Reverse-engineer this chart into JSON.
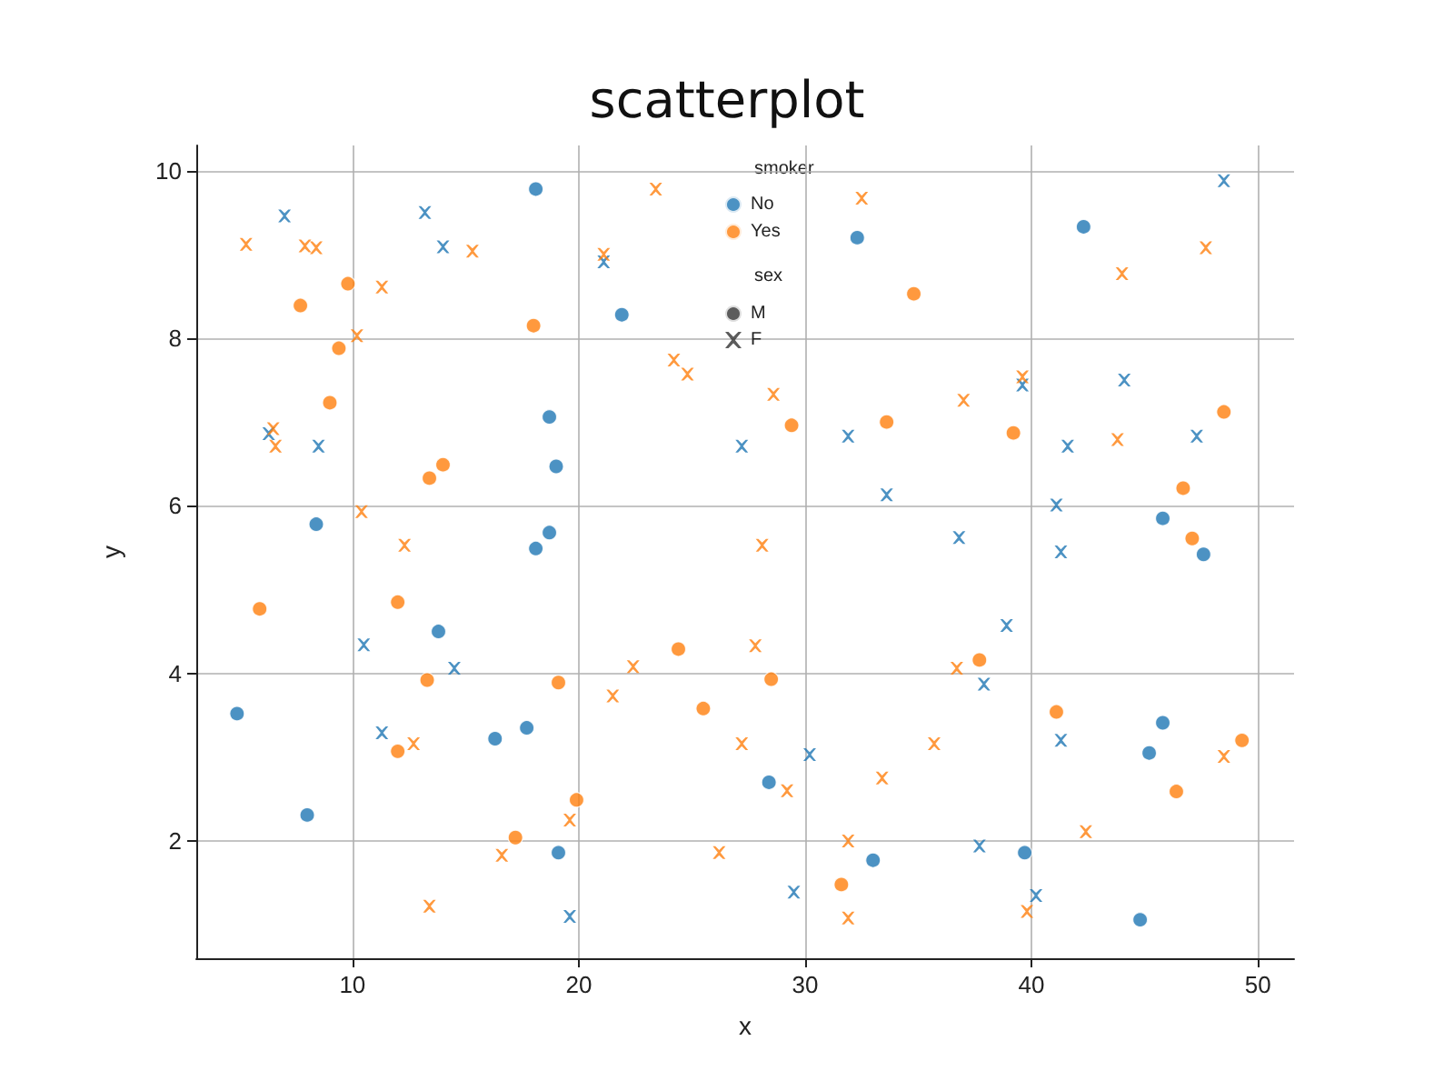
{
  "chart_data": {
    "type": "scatter",
    "title": "scatterplot",
    "xlabel": "x",
    "ylabel": "y",
    "legend_title": "smoker",
    "annotations": [
      "sex"
    ],
    "xlim": [
      3.1,
      51.6
    ],
    "ylim": [
      0.6,
      10.3
    ],
    "xticks": [
      10,
      20,
      30,
      40,
      50
    ],
    "yticks": [
      2,
      4,
      6,
      8,
      10
    ],
    "grid": true,
    "legend": "top",
    "series": [
      {
        "name": "No",
        "color": "#1f77b4",
        "marker": "circle",
        "x": [
          18.1,
          32.3,
          21.9,
          42.3,
          18.7,
          19.0,
          8.4,
          18.1,
          18.7,
          45.8,
          47.6,
          13.8,
          4.9,
          8.0,
          16.3,
          17.7,
          19.1,
          28.4,
          33.0,
          39.7,
          45.2,
          45.8,
          44.8
        ],
        "values": [
          9.78,
          9.2,
          8.28,
          9.33,
          7.06,
          6.47,
          5.78,
          5.49,
          5.68,
          5.85,
          5.42,
          4.5,
          3.52,
          2.31,
          3.22,
          3.35,
          1.86,
          2.7,
          1.77,
          1.86,
          3.05,
          3.41,
          1.06
        ]
      },
      {
        "name": "Yes",
        "color": "#ff7f0e",
        "marker": "circle",
        "x": [
          7.7,
          9.8,
          9.4,
          9.0,
          18.0,
          34.8,
          13.4,
          14.0,
          5.9,
          12.0,
          13.3,
          12.0,
          29.4,
          33.6,
          39.2,
          48.5,
          46.7,
          47.1,
          24.4,
          37.7,
          19.1,
          28.5,
          25.5,
          41.1,
          49.3,
          46.4,
          19.9,
          17.2,
          31.6
        ],
        "values": [
          8.39,
          8.65,
          7.88,
          7.23,
          8.15,
          8.53,
          6.33,
          6.49,
          4.77,
          4.85,
          3.92,
          3.07,
          6.96,
          7.0,
          6.87,
          7.12,
          6.21,
          5.61,
          4.29,
          4.16,
          3.89,
          3.93,
          3.58,
          3.54,
          3.2,
          2.59,
          2.49,
          2.04,
          1.48
        ]
      },
      {
        "color": "#1f77b4",
        "marker": "cross",
        "x": [
          7.0,
          13.2,
          14.0,
          6.3,
          8.5,
          21.1,
          48.5,
          27.2,
          31.9,
          33.6,
          39.6,
          44.1,
          47.3,
          41.6,
          41.1,
          41.3,
          36.8,
          38.9,
          37.9,
          10.5,
          14.5,
          11.3,
          30.2,
          41.3,
          29.5,
          37.7,
          40.2,
          19.6
        ],
        "values": [
          9.46,
          9.5,
          9.09,
          6.86,
          6.71,
          8.91,
          9.88,
          6.71,
          6.83,
          6.13,
          7.44,
          7.5,
          6.83,
          6.71,
          6.01,
          5.45,
          5.62,
          4.57,
          3.87,
          4.34,
          4.06,
          3.29,
          3.03,
          3.2,
          1.39,
          1.94,
          1.35,
          1.1
        ]
      },
      {
        "color": "#ff7f0e",
        "marker": "cross",
        "x": [
          5.3,
          7.9,
          8.4,
          15.3,
          23.4,
          21.1,
          32.5,
          11.3,
          10.2,
          24.2,
          24.8,
          28.6,
          39.6,
          44.0,
          47.7,
          37.0,
          43.8,
          6.5,
          6.6,
          10.4,
          12.3,
          28.1,
          27.8,
          22.4,
          21.5,
          36.7,
          27.2,
          12.7,
          35.7,
          29.2,
          33.4,
          19.6,
          26.2,
          31.9,
          42.4,
          48.5,
          16.6,
          13.4,
          31.9,
          39.8
        ],
        "values": [
          9.12,
          9.1,
          9.08,
          9.04,
          9.78,
          9.0,
          9.67,
          8.61,
          8.03,
          7.74,
          7.57,
          7.33,
          7.54,
          8.77,
          9.08,
          7.26,
          6.79,
          6.92,
          6.71,
          5.93,
          5.53,
          5.53,
          4.33,
          4.08,
          3.73,
          4.06,
          3.16,
          3.16,
          3.16,
          2.6,
          2.75,
          2.25,
          1.86,
          2.0,
          2.11,
          3.01,
          1.83,
          1.22,
          1.08,
          1.16
        ]
      },
      {
        "name": "M",
        "color": "#333333",
        "marker": "circle"
      },
      {
        "name": "F",
        "color": "#333333",
        "marker": "cross"
      }
    ]
  }
}
